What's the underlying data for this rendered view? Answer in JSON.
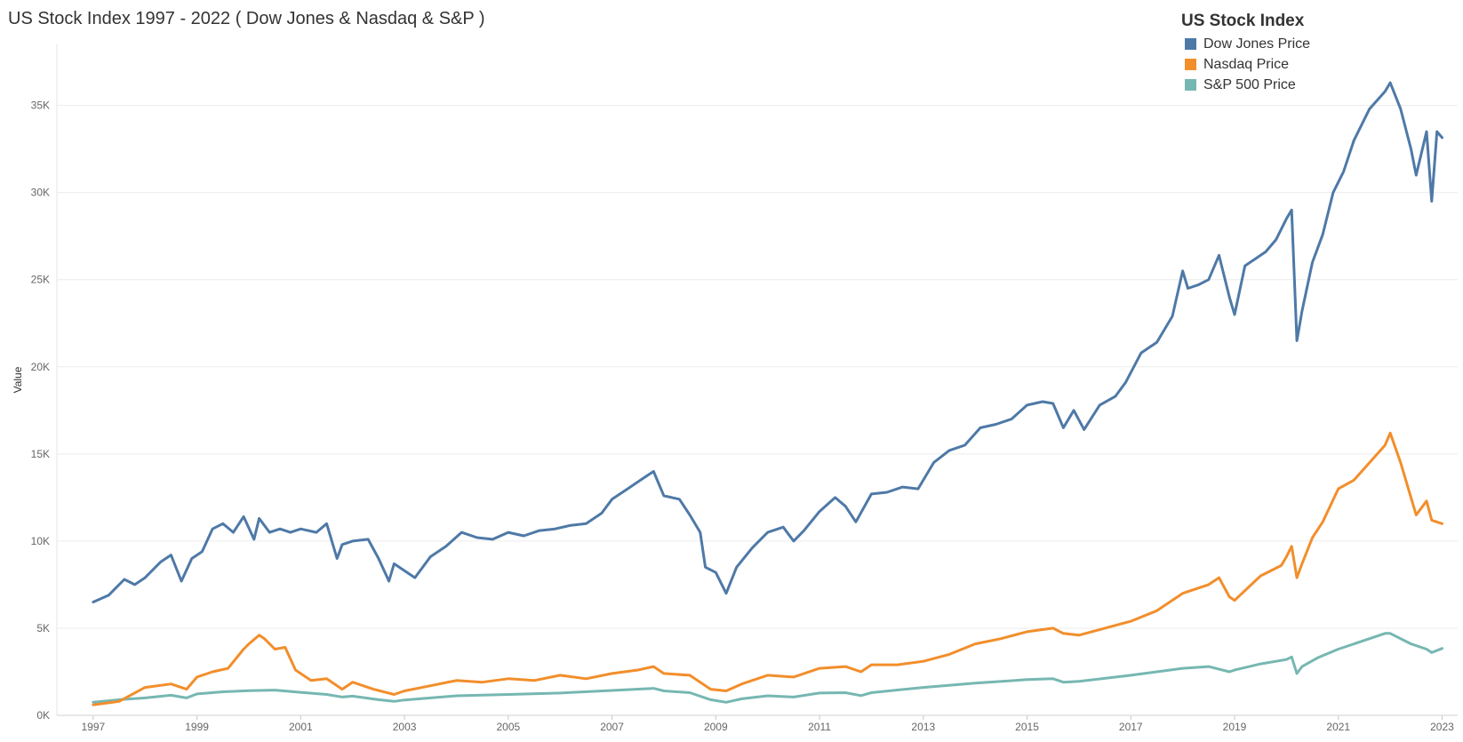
{
  "chart_data": {
    "type": "line",
    "title": "US Stock Index 1997 - 2022 ( Dow Jones & Nasdaq & S&P )",
    "xlabel": "",
    "ylabel": "Value",
    "xlim": [
      1996.3,
      2023.3
    ],
    "ylim": [
      0,
      38500
    ],
    "x_ticks": [
      1997,
      1999,
      2001,
      2003,
      2005,
      2007,
      2009,
      2011,
      2013,
      2015,
      2017,
      2019,
      2021,
      2023
    ],
    "y_ticks": [
      {
        "value": 0,
        "label": "0K"
      },
      {
        "value": 5000,
        "label": "5K"
      },
      {
        "value": 10000,
        "label": "10K"
      },
      {
        "value": 15000,
        "label": "15K"
      },
      {
        "value": 20000,
        "label": "20K"
      },
      {
        "value": 25000,
        "label": "25K"
      },
      {
        "value": 30000,
        "label": "30K"
      },
      {
        "value": 35000,
        "label": "35K"
      }
    ],
    "grid": true,
    "legend": {
      "title": "US Stock Index",
      "placement": "top-right"
    },
    "series": [
      {
        "name": "Dow Jones Price",
        "color": "#4e79a7",
        "x": [
          1997.0,
          1997.3,
          1997.6,
          1997.8,
          1998.0,
          1998.3,
          1998.5,
          1998.7,
          1998.9,
          1999.1,
          1999.3,
          1999.5,
          1999.7,
          1999.9,
          2000.1,
          2000.2,
          2000.4,
          2000.6,
          2000.8,
          2001.0,
          2001.3,
          2001.5,
          2001.7,
          2001.8,
          2002.0,
          2002.3,
          2002.5,
          2002.7,
          2002.8,
          2003.0,
          2003.2,
          2003.5,
          2003.8,
          2004.1,
          2004.4,
          2004.7,
          2005.0,
          2005.3,
          2005.6,
          2005.9,
          2006.2,
          2006.5,
          2006.8,
          2007.0,
          2007.3,
          2007.6,
          2007.8,
          2008.0,
          2008.3,
          2008.5,
          2008.7,
          2008.8,
          2009.0,
          2009.2,
          2009.4,
          2009.7,
          2010.0,
          2010.3,
          2010.5,
          2010.7,
          2011.0,
          2011.3,
          2011.5,
          2011.7,
          2012.0,
          2012.3,
          2012.6,
          2012.9,
          2013.2,
          2013.5,
          2013.8,
          2014.1,
          2014.4,
          2014.7,
          2015.0,
          2015.3,
          2015.5,
          2015.7,
          2015.9,
          2016.1,
          2016.4,
          2016.7,
          2016.9,
          2017.2,
          2017.5,
          2017.8,
          2018.0,
          2018.1,
          2018.3,
          2018.5,
          2018.7,
          2018.9,
          2019.0,
          2019.2,
          2019.4,
          2019.6,
          2019.8,
          2020.0,
          2020.1,
          2020.2,
          2020.3,
          2020.5,
          2020.7,
          2020.9,
          2021.1,
          2021.3,
          2021.6,
          2021.9,
          2022.0,
          2022.2,
          2022.4,
          2022.5,
          2022.7,
          2022.8,
          2022.9,
          2023.0
        ],
        "values": [
          6500,
          6900,
          7800,
          7500,
          7900,
          8800,
          9200,
          7700,
          9000,
          9400,
          10700,
          11000,
          10500,
          11400,
          10100,
          11300,
          10500,
          10700,
          10500,
          10700,
          10500,
          11000,
          9000,
          9800,
          10000,
          10100,
          9000,
          7700,
          8700,
          8300,
          7900,
          9100,
          9700,
          10500,
          10200,
          10100,
          10500,
          10300,
          10600,
          10700,
          10900,
          11000,
          11600,
          12400,
          13000,
          13600,
          14000,
          12600,
          12400,
          11500,
          10500,
          8500,
          8200,
          7000,
          8500,
          9600,
          10500,
          10800,
          10000,
          10600,
          11700,
          12500,
          12000,
          11100,
          12700,
          12800,
          13100,
          13000,
          14500,
          15200,
          15500,
          16500,
          16700,
          17000,
          17800,
          18000,
          17900,
          16500,
          17500,
          16400,
          17800,
          18300,
          19100,
          20800,
          21400,
          22900,
          25500,
          24500,
          24700,
          25000,
          26400,
          24000,
          23000,
          25800,
          26200,
          26600,
          27300,
          28500,
          29000,
          21500,
          23200,
          26000,
          27600,
          30000,
          31200,
          33000,
          34800,
          35800,
          36300,
          34800,
          32500,
          31000,
          33500,
          29500,
          33500,
          33150
        ]
      },
      {
        "name": "Nasdaq Price",
        "color": "#f28e2b",
        "x": [
          1997.0,
          1997.5,
          1998.0,
          1998.5,
          1998.8,
          1999.0,
          1999.3,
          1999.6,
          1999.9,
          2000.0,
          2000.2,
          2000.3,
          2000.5,
          2000.7,
          2000.9,
          2001.2,
          2001.5,
          2001.8,
          2002.0,
          2002.4,
          2002.8,
          2003.0,
          2003.5,
          2004.0,
          2004.5,
          2005.0,
          2005.5,
          2006.0,
          2006.5,
          2007.0,
          2007.5,
          2007.8,
          2008.0,
          2008.5,
          2008.9,
          2009.2,
          2009.5,
          2010.0,
          2010.5,
          2011.0,
          2011.5,
          2011.8,
          2012.0,
          2012.5,
          2013.0,
          2013.5,
          2014.0,
          2014.5,
          2015.0,
          2015.5,
          2015.7,
          2016.0,
          2016.5,
          2017.0,
          2017.5,
          2018.0,
          2018.5,
          2018.7,
          2018.9,
          2019.0,
          2019.5,
          2019.9,
          2020.0,
          2020.1,
          2020.2,
          2020.3,
          2020.5,
          2020.7,
          2021.0,
          2021.3,
          2021.6,
          2021.9,
          2022.0,
          2022.2,
          2022.4,
          2022.5,
          2022.7,
          2022.8,
          2023.0
        ],
        "values": [
          600,
          800,
          1600,
          1800,
          1500,
          2200,
          2500,
          2700,
          3800,
          4100,
          4600,
          4400,
          3800,
          3900,
          2600,
          2000,
          2100,
          1500,
          1900,
          1500,
          1200,
          1400,
          1700,
          2000,
          1900,
          2100,
          2000,
          2300,
          2100,
          2400,
          2600,
          2800,
          2400,
          2300,
          1500,
          1400,
          1800,
          2300,
          2200,
          2700,
          2800,
          2500,
          2900,
          2900,
          3100,
          3500,
          4100,
          4400,
          4800,
          5000,
          4700,
          4600,
          5000,
          5400,
          6000,
          7000,
          7500,
          7900,
          6800,
          6600,
          8000,
          8600,
          9100,
          9700,
          7900,
          8700,
          10200,
          11100,
          13000,
          13500,
          14500,
          15500,
          16200,
          14500,
          12500,
          11500,
          12300,
          11200,
          11000
        ]
      },
      {
        "name": "S&P 500 Price",
        "color": "#76b7b2",
        "x": [
          1997.0,
          1997.5,
          1998.0,
          1998.5,
          1998.8,
          1999.0,
          1999.5,
          2000.0,
          2000.5,
          2001.0,
          2001.5,
          2001.8,
          2002.0,
          2002.5,
          2002.8,
          2003.0,
          2003.5,
          2004.0,
          2005.0,
          2006.0,
          2007.0,
          2007.8,
          2008.0,
          2008.5,
          2008.9,
          2009.2,
          2009.5,
          2010.0,
          2010.5,
          2011.0,
          2011.5,
          2011.8,
          2012.0,
          2013.0,
          2014.0,
          2015.0,
          2015.5,
          2015.7,
          2016.0,
          2017.0,
          2018.0,
          2018.5,
          2018.9,
          2019.0,
          2019.5,
          2020.0,
          2020.1,
          2020.2,
          2020.3,
          2020.6,
          2021.0,
          2021.5,
          2021.9,
          2022.0,
          2022.4,
          2022.7,
          2022.8,
          2023.0
        ],
        "values": [
          750,
          900,
          1000,
          1150,
          1000,
          1230,
          1350,
          1420,
          1450,
          1320,
          1200,
          1050,
          1100,
          900,
          800,
          880,
          1000,
          1120,
          1200,
          1280,
          1430,
          1550,
          1400,
          1300,
          900,
          750,
          950,
          1120,
          1050,
          1280,
          1300,
          1130,
          1300,
          1600,
          1850,
          2050,
          2100,
          1900,
          1950,
          2300,
          2700,
          2800,
          2500,
          2600,
          2950,
          3200,
          3350,
          2400,
          2800,
          3300,
          3800,
          4300,
          4700,
          4700,
          4100,
          3800,
          3600,
          3840
        ]
      }
    ]
  }
}
